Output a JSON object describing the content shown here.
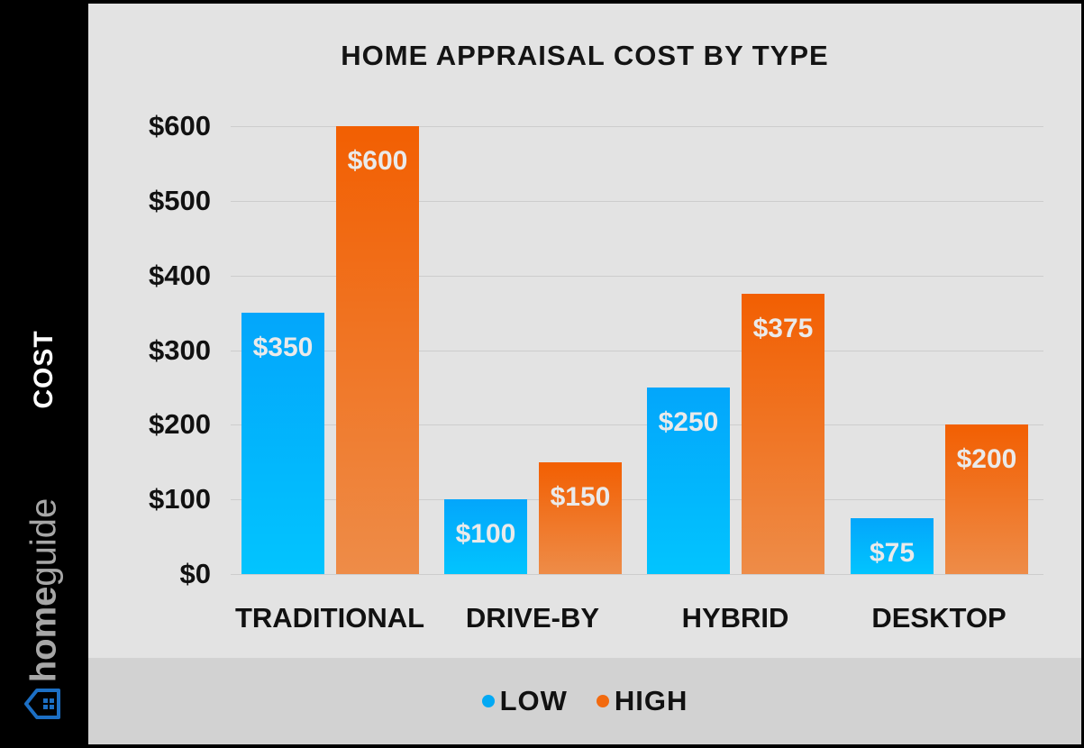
{
  "chart_data": {
    "type": "bar",
    "title": "HOME APPRAISAL COST BY TYPE",
    "xlabel": "",
    "ylabel": "COST",
    "ylim": [
      0,
      600
    ],
    "yticks": [
      "$0",
      "$100",
      "$200",
      "$300",
      "$400",
      "$500",
      "$600"
    ],
    "grid": true,
    "legend_position": "bottom",
    "categories": [
      "TRADITIONAL",
      "DRIVE-BY",
      "HYBRID",
      "DESKTOP"
    ],
    "series": [
      {
        "name": "LOW",
        "color": "#03a9f4",
        "values": [
          350,
          100,
          250,
          75
        ],
        "labels": [
          "$350",
          "$100",
          "$250",
          "$75"
        ]
      },
      {
        "name": "HIGH",
        "color": "#f26a0f",
        "values": [
          600,
          150,
          375,
          200
        ],
        "labels": [
          "$600",
          "$150",
          "$375",
          "$200"
        ]
      }
    ]
  },
  "sidebar": {
    "axis_label": "COST",
    "brand_bold": "home",
    "brand_light": "guide",
    "brand_icon": "house-icon"
  },
  "legend": {
    "low": "LOW",
    "high": "HIGH"
  }
}
